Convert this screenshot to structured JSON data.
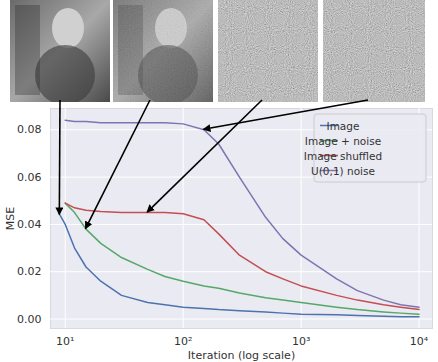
{
  "chart_data": {
    "type": "line",
    "x_label": "Iteration (log scale)",
    "y_label": "MSE",
    "log": "x",
    "grid": true,
    "legend": "upper right",
    "x": [
      9,
      10,
      12,
      15,
      20,
      30,
      50,
      70,
      100,
      150,
      200,
      300,
      500,
      700,
      1000,
      2000,
      3000,
      5000,
      7000,
      10000
    ],
    "series": [
      {
        "name": "Image",
        "color": "#4c72b0",
        "values": [
          0.044,
          0.04,
          0.03,
          0.022,
          0.016,
          0.01,
          0.007,
          0.006,
          0.005,
          0.0045,
          0.004,
          0.0035,
          0.003,
          0.0025,
          0.002,
          0.0018,
          0.0015,
          0.0012,
          0.001,
          0.001
        ]
      },
      {
        "name": "Image + noise",
        "color": "#55a868",
        "values": [
          null,
          0.049,
          0.045,
          0.038,
          0.032,
          0.026,
          0.021,
          0.018,
          0.016,
          0.014,
          0.013,
          0.011,
          0.009,
          0.008,
          0.007,
          0.005,
          0.004,
          0.003,
          0.0025,
          0.002
        ]
      },
      {
        "name": "Image shuffled",
        "color": "#c44e52",
        "values": [
          null,
          0.049,
          0.047,
          0.046,
          0.0455,
          0.045,
          0.045,
          0.045,
          0.0445,
          0.042,
          0.036,
          0.027,
          0.02,
          0.017,
          0.014,
          0.01,
          0.008,
          0.006,
          0.005,
          0.004
        ]
      },
      {
        "name": "U(0,1) noise",
        "color": "#8172b2",
        "values": [
          null,
          0.084,
          0.0835,
          0.0835,
          0.083,
          0.083,
          0.083,
          0.083,
          0.0825,
          0.08,
          0.074,
          0.06,
          0.043,
          0.034,
          0.027,
          0.017,
          0.012,
          0.008,
          0.006,
          0.005
        ]
      }
    ],
    "xlim": [
      7.5,
      13000
    ],
    "xticks": [
      {
        "value": 10,
        "label": "10¹"
      },
      {
        "value": 100,
        "label": "10²"
      },
      {
        "value": 1000,
        "label": "10³"
      },
      {
        "value": 10000,
        "label": "10⁴"
      }
    ],
    "ylim": [
      -0.004,
      0.089
    ],
    "yticks": [
      {
        "value": 0,
        "label": "0.00"
      },
      {
        "value": 0.02,
        "label": "0.02"
      },
      {
        "value": 0.04,
        "label": "0.04"
      },
      {
        "value": 0.06,
        "label": "0.06"
      },
      {
        "value": 0.08,
        "label": "0.08"
      }
    ]
  }
}
